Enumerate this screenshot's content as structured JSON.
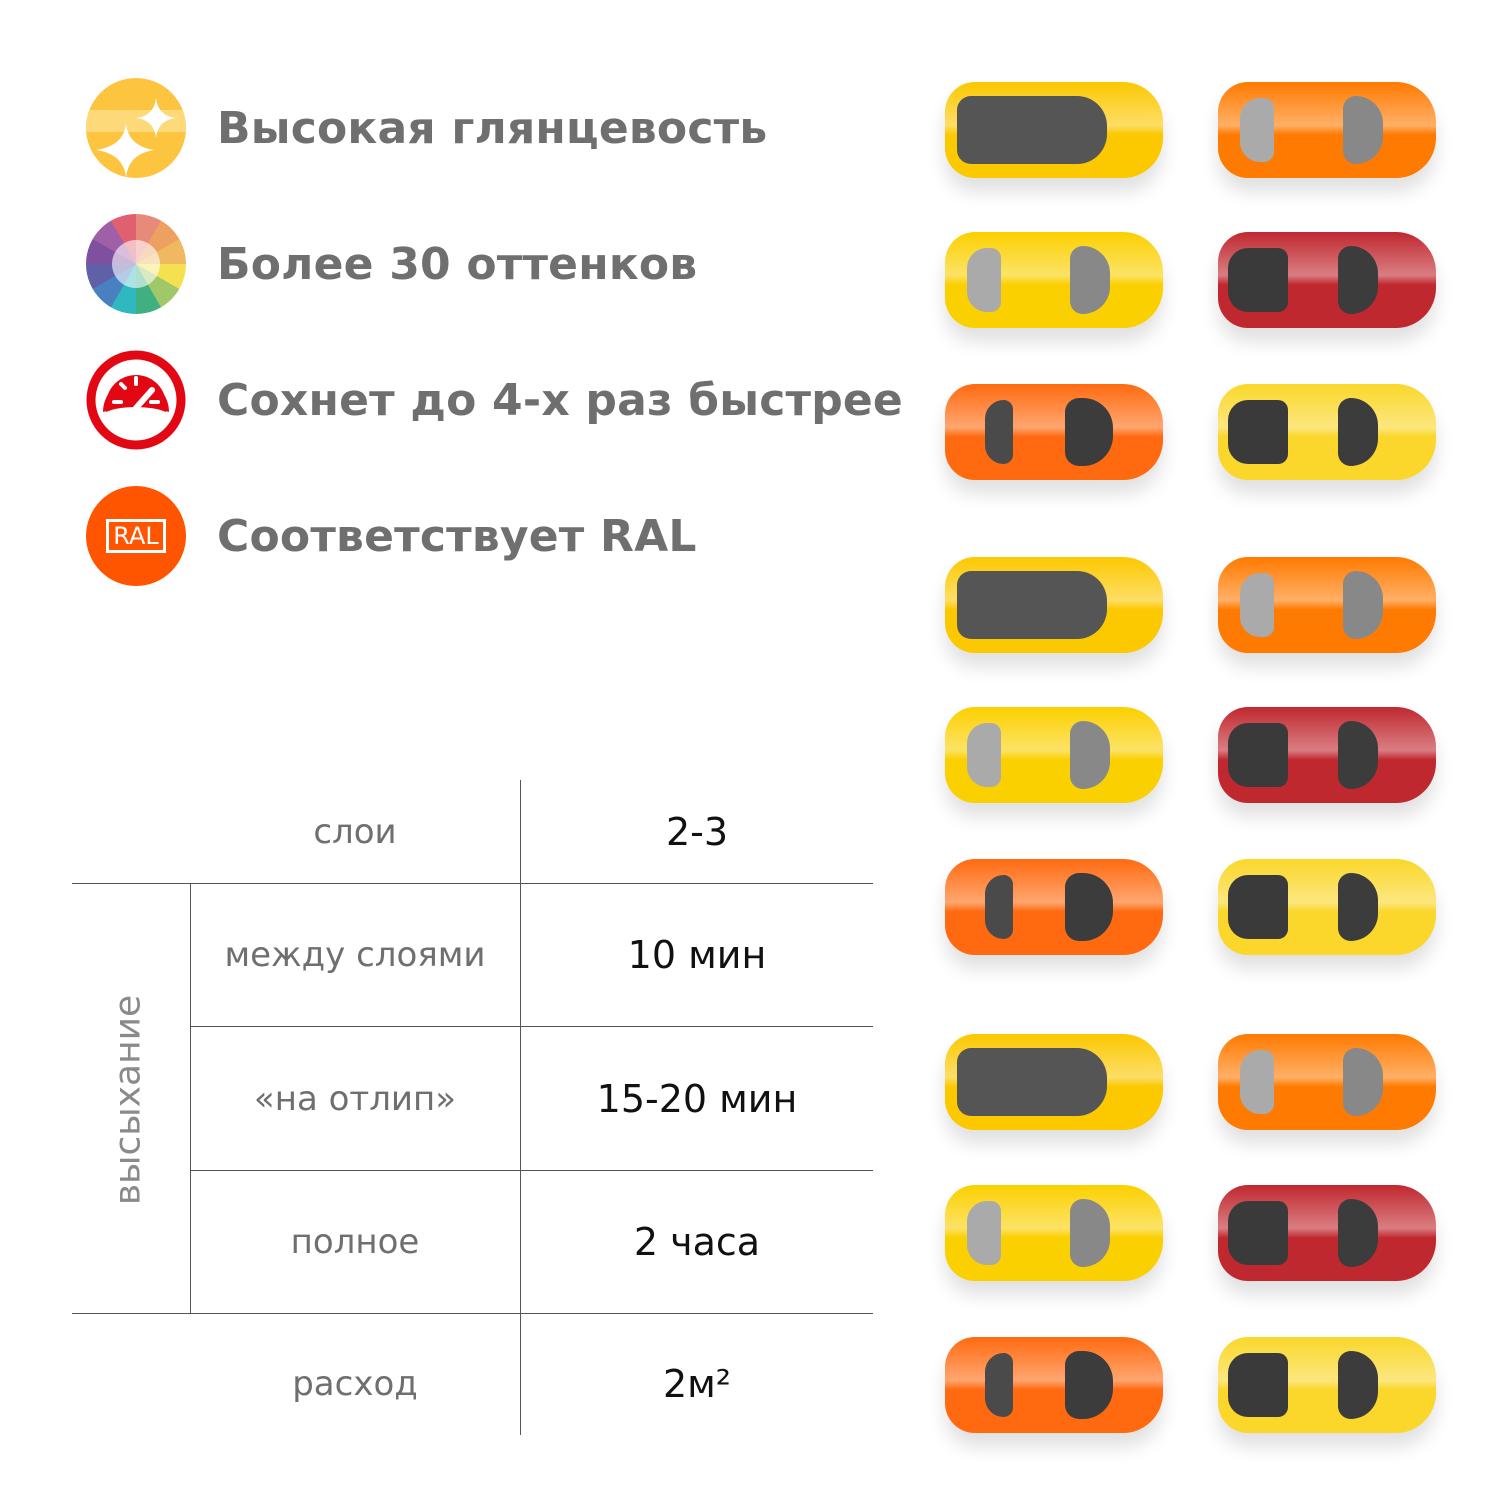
{
  "features": [
    {
      "icon": "sparkle-icon",
      "label": "Высокая глянцевость",
      "color": "#fdc440"
    },
    {
      "icon": "color-wheel-icon",
      "label": "Более 30 оттенков",
      "color": "#9a6fb0"
    },
    {
      "icon": "speedometer-icon",
      "label": "Сохнет до 4-х раз быстрее",
      "color": "#e30613"
    },
    {
      "icon": "ral-icon",
      "label": "Соответствует RAL",
      "icon_text": "RAL",
      "color": "#ff5500"
    }
  ],
  "table": {
    "group_label": "высыхание",
    "rows": [
      {
        "label": "слои",
        "value": "2-3"
      },
      {
        "label": "между слоями",
        "value": "10 мин"
      },
      {
        "label": "«на отлип»",
        "value": "15-20 мин"
      },
      {
        "label": "полное",
        "value": "2 часа"
      },
      {
        "label": "расход",
        "value": "2м²"
      }
    ]
  },
  "cars": {
    "pattern": [
      {
        "type": "convertible",
        "color": "#fcc800"
      },
      {
        "type": "sedan",
        "color": "#ff7a00"
      },
      {
        "type": "sedan",
        "color": "#fbd000"
      },
      {
        "type": "pickup",
        "color": "#c0282f"
      },
      {
        "type": "sports",
        "color": "#ff6a10"
      },
      {
        "type": "pickup",
        "color": "#fad72a"
      }
    ]
  }
}
